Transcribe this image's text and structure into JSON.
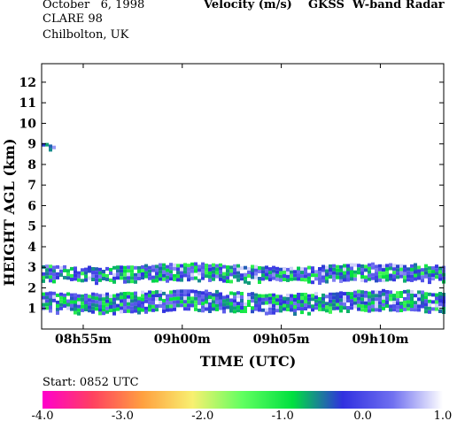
{
  "header": {
    "date": "October   6, 1998",
    "campaign": "CLARE 98",
    "location": "Chilbolton, UK",
    "title": "Velocity (m/s)    GKSS  W-band Radar"
  },
  "start_label": "Start: 0852 UTC",
  "chart_data": {
    "type": "heatmap",
    "xlabel": "TIME (UTC)",
    "ylabel": "HEIGHT AGL (km)",
    "x_unit": "minutes after 08:52 UTC",
    "xlim": [
      0.9,
      21.2
    ],
    "ylim": [
      0,
      12.9
    ],
    "x_ticks": [
      {
        "value": 3,
        "label": "08h55m"
      },
      {
        "value": 8,
        "label": "09h00m"
      },
      {
        "value": 13,
        "label": "09h05m"
      },
      {
        "value": 18,
        "label": "09h10m"
      }
    ],
    "y_ticks": [
      1,
      2,
      3,
      4,
      5,
      6,
      7,
      8,
      9,
      10,
      11,
      12
    ],
    "colorbar": {
      "label_text": [
        "-4.0",
        "-3.0",
        "-2.0",
        "-1.0",
        "0.0",
        "1.0"
      ],
      "min": -4.0,
      "max": 1.0,
      "colors": [
        "#ff00cc",
        "#ff4060",
        "#ffa040",
        "#f8f070",
        "#60ff60",
        "#00e040",
        "#3030e0",
        "#7070f0",
        "#ffffff"
      ]
    },
    "cloud_layers": [
      {
        "name": "upper layer",
        "x_range": [
          0.9,
          21.2
        ],
        "base_km": 2.4,
        "top_km": 3.1,
        "mean_velocity": -0.2
      },
      {
        "name": "lower layer",
        "x_range": [
          0.9,
          21.2
        ],
        "base_km": 0.9,
        "top_km": 1.8,
        "mean_velocity": -0.3
      },
      {
        "name": "isolated echo",
        "x_range": [
          0.9,
          1.5
        ],
        "base_km": 8.8,
        "top_km": 9.0,
        "mean_velocity": 0.0
      }
    ]
  }
}
